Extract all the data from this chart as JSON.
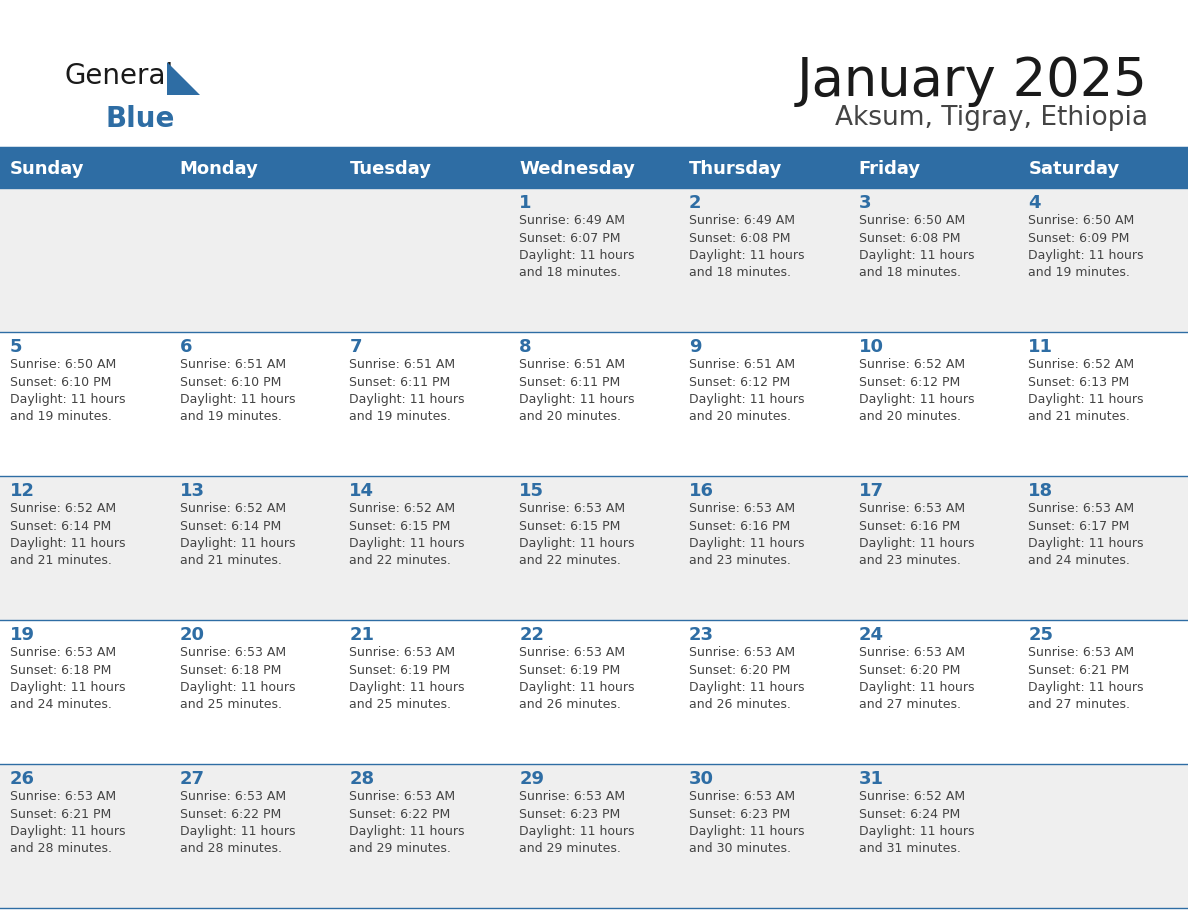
{
  "title": "January 2025",
  "subtitle": "Aksum, Tigray, Ethiopia",
  "days_of_week": [
    "Sunday",
    "Monday",
    "Tuesday",
    "Wednesday",
    "Thursday",
    "Friday",
    "Saturday"
  ],
  "header_bg": "#2E6DA4",
  "header_text": "#FFFFFF",
  "row_bg_even": "#EFEFEF",
  "row_bg_odd": "#FFFFFF",
  "text_color": "#444444",
  "day_num_color": "#2E6DA4",
  "border_color": "#2E6DA4",
  "title_color": "#1a1a1a",
  "subtitle_color": "#444444",
  "logo_general_color": "#1a1a1a",
  "logo_blue_color": "#2E6DA4",
  "calendar": [
    [
      {
        "day": 0,
        "info": ""
      },
      {
        "day": 0,
        "info": ""
      },
      {
        "day": 0,
        "info": ""
      },
      {
        "day": 1,
        "info": "Sunrise: 6:49 AM\nSunset: 6:07 PM\nDaylight: 11 hours\nand 18 minutes."
      },
      {
        "day": 2,
        "info": "Sunrise: 6:49 AM\nSunset: 6:08 PM\nDaylight: 11 hours\nand 18 minutes."
      },
      {
        "day": 3,
        "info": "Sunrise: 6:50 AM\nSunset: 6:08 PM\nDaylight: 11 hours\nand 18 minutes."
      },
      {
        "day": 4,
        "info": "Sunrise: 6:50 AM\nSunset: 6:09 PM\nDaylight: 11 hours\nand 19 minutes."
      }
    ],
    [
      {
        "day": 5,
        "info": "Sunrise: 6:50 AM\nSunset: 6:10 PM\nDaylight: 11 hours\nand 19 minutes."
      },
      {
        "day": 6,
        "info": "Sunrise: 6:51 AM\nSunset: 6:10 PM\nDaylight: 11 hours\nand 19 minutes."
      },
      {
        "day": 7,
        "info": "Sunrise: 6:51 AM\nSunset: 6:11 PM\nDaylight: 11 hours\nand 19 minutes."
      },
      {
        "day": 8,
        "info": "Sunrise: 6:51 AM\nSunset: 6:11 PM\nDaylight: 11 hours\nand 20 minutes."
      },
      {
        "day": 9,
        "info": "Sunrise: 6:51 AM\nSunset: 6:12 PM\nDaylight: 11 hours\nand 20 minutes."
      },
      {
        "day": 10,
        "info": "Sunrise: 6:52 AM\nSunset: 6:12 PM\nDaylight: 11 hours\nand 20 minutes."
      },
      {
        "day": 11,
        "info": "Sunrise: 6:52 AM\nSunset: 6:13 PM\nDaylight: 11 hours\nand 21 minutes."
      }
    ],
    [
      {
        "day": 12,
        "info": "Sunrise: 6:52 AM\nSunset: 6:14 PM\nDaylight: 11 hours\nand 21 minutes."
      },
      {
        "day": 13,
        "info": "Sunrise: 6:52 AM\nSunset: 6:14 PM\nDaylight: 11 hours\nand 21 minutes."
      },
      {
        "day": 14,
        "info": "Sunrise: 6:52 AM\nSunset: 6:15 PM\nDaylight: 11 hours\nand 22 minutes."
      },
      {
        "day": 15,
        "info": "Sunrise: 6:53 AM\nSunset: 6:15 PM\nDaylight: 11 hours\nand 22 minutes."
      },
      {
        "day": 16,
        "info": "Sunrise: 6:53 AM\nSunset: 6:16 PM\nDaylight: 11 hours\nand 23 minutes."
      },
      {
        "day": 17,
        "info": "Sunrise: 6:53 AM\nSunset: 6:16 PM\nDaylight: 11 hours\nand 23 minutes."
      },
      {
        "day": 18,
        "info": "Sunrise: 6:53 AM\nSunset: 6:17 PM\nDaylight: 11 hours\nand 24 minutes."
      }
    ],
    [
      {
        "day": 19,
        "info": "Sunrise: 6:53 AM\nSunset: 6:18 PM\nDaylight: 11 hours\nand 24 minutes."
      },
      {
        "day": 20,
        "info": "Sunrise: 6:53 AM\nSunset: 6:18 PM\nDaylight: 11 hours\nand 25 minutes."
      },
      {
        "day": 21,
        "info": "Sunrise: 6:53 AM\nSunset: 6:19 PM\nDaylight: 11 hours\nand 25 minutes."
      },
      {
        "day": 22,
        "info": "Sunrise: 6:53 AM\nSunset: 6:19 PM\nDaylight: 11 hours\nand 26 minutes."
      },
      {
        "day": 23,
        "info": "Sunrise: 6:53 AM\nSunset: 6:20 PM\nDaylight: 11 hours\nand 26 minutes."
      },
      {
        "day": 24,
        "info": "Sunrise: 6:53 AM\nSunset: 6:20 PM\nDaylight: 11 hours\nand 27 minutes."
      },
      {
        "day": 25,
        "info": "Sunrise: 6:53 AM\nSunset: 6:21 PM\nDaylight: 11 hours\nand 27 minutes."
      }
    ],
    [
      {
        "day": 26,
        "info": "Sunrise: 6:53 AM\nSunset: 6:21 PM\nDaylight: 11 hours\nand 28 minutes."
      },
      {
        "day": 27,
        "info": "Sunrise: 6:53 AM\nSunset: 6:22 PM\nDaylight: 11 hours\nand 28 minutes."
      },
      {
        "day": 28,
        "info": "Sunrise: 6:53 AM\nSunset: 6:22 PM\nDaylight: 11 hours\nand 29 minutes."
      },
      {
        "day": 29,
        "info": "Sunrise: 6:53 AM\nSunset: 6:23 PM\nDaylight: 11 hours\nand 29 minutes."
      },
      {
        "day": 30,
        "info": "Sunrise: 6:53 AM\nSunset: 6:23 PM\nDaylight: 11 hours\nand 30 minutes."
      },
      {
        "day": 31,
        "info": "Sunrise: 6:52 AM\nSunset: 6:24 PM\nDaylight: 11 hours\nand 31 minutes."
      },
      {
        "day": 0,
        "info": ""
      }
    ]
  ]
}
